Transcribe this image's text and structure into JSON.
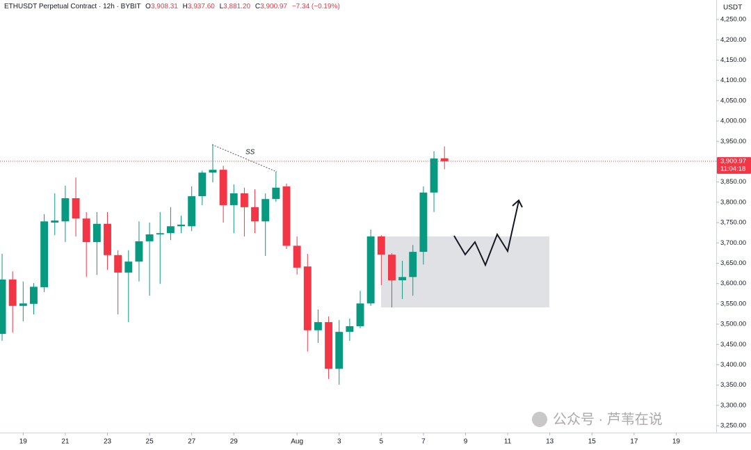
{
  "header": {
    "symbol": "ETHUSDT Perpetual Contract · 12h · BYBIT",
    "o_label": "O",
    "open": "3,908.31",
    "h_label": "H",
    "high": "3,937.60",
    "l_label": "L",
    "low": "3,881.20",
    "c_label": "C",
    "close": "3,900.97",
    "change": "−7.34 (−0.19%)"
  },
  "chart_data": {
    "type": "candlestick",
    "currency": "USDT",
    "annotation": "SS",
    "last_price_label": "3,900.97",
    "countdown": "11:04:18",
    "watermark": "公众号 · 芦苇在说",
    "up_color": "#089981",
    "down_color": "#f23645",
    "x": [
      0,
      1,
      2,
      3,
      4,
      5,
      6,
      7,
      8,
      9,
      10,
      11,
      12,
      13,
      14,
      15,
      16,
      17,
      18,
      19,
      20,
      21,
      22,
      23,
      24,
      25,
      26,
      27,
      28,
      29,
      30,
      31,
      32,
      33,
      34,
      35,
      36,
      37,
      38,
      39,
      40,
      41,
      42
    ],
    "open": [
      3476,
      3610,
      3545,
      3550,
      3591,
      3750,
      3753,
      3810,
      3760,
      3702,
      3747,
      3670,
      3627,
      3654,
      3704,
      3721,
      3724,
      3741,
      3741,
      3815,
      3873,
      3880,
      3793,
      3822,
      3788,
      3753,
      3808,
      3839,
      3693,
      3642,
      3485,
      3505,
      3390,
      3481,
      3495,
      3551,
      3716,
      3671,
      3608,
      3616,
      3678,
      3824,
      3908.31
    ],
    "high": [
      3673,
      3630,
      3605,
      3601,
      3771,
      3822,
      3841,
      3861,
      3776,
      3776,
      3776,
      3682,
      3682,
      3753,
      3750,
      3776,
      3788,
      3767,
      3839,
      3878,
      3943,
      3890,
      3844,
      3836,
      3832,
      3822,
      3875,
      3846,
      3716,
      3673,
      3536,
      3519,
      3510,
      3514,
      3582,
      3733,
      3719,
      3675,
      3656,
      3695,
      3839,
      3926,
      3937.6
    ],
    "low": [
      3459,
      3479,
      3507,
      3524,
      3579,
      3719,
      3702,
      3716,
      3616,
      3621,
      3634,
      3524,
      3505,
      3605,
      3570,
      3599,
      3707,
      3724,
      3729,
      3793,
      3849,
      3750,
      3724,
      3716,
      3724,
      3668,
      3801,
      3685,
      3622,
      3433,
      3454,
      3365,
      3351,
      3459,
      3490,
      3545,
      3596,
      3541,
      3562,
      3570,
      3647,
      3776,
      3881.2
    ],
    "close": [
      3610,
      3545,
      3551,
      3592,
      3753,
      3755,
      3810,
      3760,
      3702,
      3747,
      3670,
      3627,
      3654,
      3704,
      3721,
      3724,
      3741,
      3745,
      3815,
      3873,
      3880,
      3793,
      3822,
      3788,
      3753,
      3808,
      3836,
      3693,
      3639,
      3485,
      3505,
      3390,
      3481,
      3495,
      3551,
      3716,
      3671,
      3608,
      3616,
      3678,
      3824,
      3908,
      3900.97
    ],
    "xlim": [
      -0.2,
      67.8
    ],
    "xticks": [
      {
        "value": 2,
        "label": "19"
      },
      {
        "value": 6,
        "label": "21"
      },
      {
        "value": 10,
        "label": "23"
      },
      {
        "value": 14,
        "label": "25"
      },
      {
        "value": 18,
        "label": "27"
      },
      {
        "value": 22,
        "label": "29"
      },
      {
        "value": 28,
        "label": "Aug"
      },
      {
        "value": 32,
        "label": "3"
      },
      {
        "value": 36,
        "label": "5"
      },
      {
        "value": 40,
        "label": "7"
      },
      {
        "value": 44,
        "label": "9"
      },
      {
        "value": 48,
        "label": "11"
      },
      {
        "value": 52,
        "label": "13"
      },
      {
        "value": 56,
        "label": "15"
      },
      {
        "value": 60,
        "label": "17"
      },
      {
        "value": 64,
        "label": "19"
      }
    ],
    "ylim": [
      3233,
      4298
    ],
    "yticks": [
      {
        "value": 3250,
        "label": "3,250.00"
      },
      {
        "value": 3300,
        "label": "3,300.00"
      },
      {
        "value": 3350,
        "label": "3,350.00"
      },
      {
        "value": 3400,
        "label": "3,400.00"
      },
      {
        "value": 3450,
        "label": "3,450.00"
      },
      {
        "value": 3500,
        "label": "3,500.00"
      },
      {
        "value": 3550,
        "label": "3,550.00"
      },
      {
        "value": 3600,
        "label": "3,600.00"
      },
      {
        "value": 3650,
        "label": "3,650.00"
      },
      {
        "value": 3700,
        "label": "3,700.00"
      },
      {
        "value": 3750,
        "label": "3,750.00"
      },
      {
        "value": 3800,
        "label": "3,800.00"
      },
      {
        "value": 3850,
        "label": "3,850.00"
      },
      {
        "value": 3900,
        "label": "3,900.00"
      },
      {
        "value": 3950,
        "label": "3,950.00"
      },
      {
        "value": 4000,
        "label": "4,000.00"
      },
      {
        "value": 4050,
        "label": "4,050.00"
      },
      {
        "value": 4100,
        "label": "4,100.00"
      },
      {
        "value": 4150,
        "label": "4,150.00"
      },
      {
        "value": 4200,
        "label": "4,200.00"
      },
      {
        "value": 4250,
        "label": "4,250.00"
      }
    ],
    "grid": false
  }
}
